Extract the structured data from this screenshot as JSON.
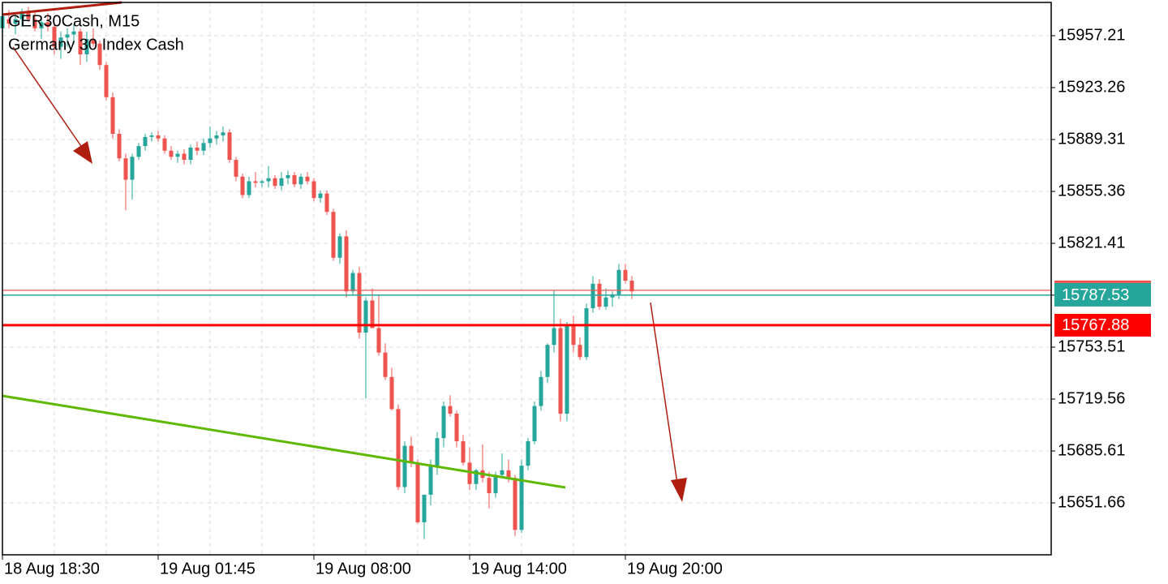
{
  "chart_data": {
    "type": "candlestick",
    "title": "GER30Cash, M15",
    "subtitle": "Germany 30 Index Cash",
    "x": [
      "18 Aug 18:30",
      null,
      null,
      null,
      null,
      null,
      null,
      null,
      null,
      null,
      null,
      null,
      null,
      null,
      null,
      null,
      null,
      null,
      null,
      null,
      null,
      null,
      null,
      null,
      "19 Aug 01:45",
      null,
      null,
      null,
      null,
      null,
      null,
      null,
      null,
      null,
      null,
      null,
      null,
      null,
      null,
      null,
      null,
      null,
      null,
      null,
      null,
      null,
      null,
      null,
      "19 Aug 08:00",
      null,
      null,
      null,
      null,
      null,
      null,
      null,
      null,
      null,
      null,
      null,
      null,
      null,
      null,
      null,
      null,
      null,
      null,
      null,
      null,
      null,
      null,
      null,
      "19 Aug 14:00",
      null,
      null,
      null,
      null,
      null,
      null,
      null,
      null,
      null,
      null,
      null,
      null,
      null,
      null,
      null,
      null,
      null,
      null,
      null,
      null,
      null,
      null,
      null,
      "19 Aug 20:00",
      null
    ],
    "open": [
      15962,
      15968,
      15965,
      15968,
      15972,
      15968,
      15962,
      15966,
      15963,
      15950,
      15956,
      15958,
      15960,
      15945,
      15955,
      15952,
      15938,
      15917,
      15893,
      15877,
      15863,
      15878,
      15885,
      15891,
      15892,
      15890,
      15882,
      15878,
      15880,
      15876,
      15884,
      15882,
      15887,
      15890,
      15892,
      15894,
      15876,
      15865,
      15853,
      15862,
      15861,
      15862,
      15864,
      15859,
      15864,
      15866,
      15860,
      15865,
      15862,
      15851,
      15854,
      15842,
      15812,
      15826,
      15790,
      15802,
      15763,
      15784,
      15766,
      15750,
      15734,
      15713,
      15662,
      15689,
      15678,
      15639,
      15657,
      15676,
      15694,
      15715,
      15710,
      15692,
      15678,
      15664,
      15673,
      15668,
      15658,
      15670,
      15673,
      15668,
      15634,
      15676,
      15692,
      15715,
      15734,
      15755,
      15766,
      15710,
      15768,
      15755,
      15747,
      15779,
      15795,
      15780,
      15786,
      15788,
      15804,
      15797
    ],
    "high": [
      15975,
      15974,
      15972,
      15975,
      15976,
      15973,
      15970,
      15972,
      15966,
      15960,
      15962,
      15965,
      15962,
      15960,
      15962,
      15954,
      15940,
      15920,
      15896,
      15880,
      15880,
      15887,
      15893,
      15894,
      15895,
      15892,
      15885,
      15882,
      15883,
      15886,
      15888,
      15890,
      15898,
      15895,
      15898,
      15896,
      15878,
      15867,
      15865,
      15868,
      15863,
      15872,
      15866,
      15868,
      15869,
      15868,
      15867,
      15868,
      15864,
      15856,
      15856,
      15844,
      15828,
      15830,
      15804,
      15806,
      15786,
      15792,
      15788,
      15756,
      15740,
      15716,
      15692,
      15695,
      15680,
      15656,
      15680,
      15698,
      15718,
      15722,
      15712,
      15696,
      15688,
      15674,
      15690,
      15672,
      15672,
      15684,
      15680,
      15670,
      15680,
      15694,
      15718,
      15738,
      15756,
      15791,
      15772,
      15770,
      15774,
      15760,
      15782,
      15800,
      15798,
      15792,
      15790,
      15808,
      15808,
      15800
    ],
    "low": [
      15958,
      15962,
      15958,
      15963,
      15966,
      15960,
      15955,
      15960,
      15945,
      15942,
      15950,
      15952,
      15938,
      15940,
      15950,
      15935,
      15915,
      15890,
      15875,
      15843,
      15850,
      15876,
      15882,
      15888,
      15888,
      15880,
      15876,
      15874,
      15873,
      15873,
      15879,
      15879,
      15884,
      15886,
      15888,
      15874,
      15862,
      15851,
      15851,
      15858,
      15858,
      15858,
      15857,
      15856,
      15860,
      15858,
      15857,
      15860,
      15849,
      15848,
      15840,
      15810,
      15808,
      15786,
      15788,
      15759,
      15720,
      15766,
      15748,
      15732,
      15712,
      15660,
      15658,
      15675,
      15638,
      15628,
      15650,
      15670,
      15688,
      15708,
      15688,
      15676,
      15660,
      15660,
      15665,
      15648,
      15655,
      15668,
      15665,
      15630,
      15632,
      15673,
      15690,
      15712,
      15730,
      15750,
      15705,
      15705,
      15750,
      15745,
      15745,
      15776,
      15778,
      15778,
      15780,
      15785,
      15795,
      15785
    ],
    "close": [
      15970,
      15965,
      15968,
      15972,
      15968,
      15962,
      15966,
      15963,
      15950,
      15956,
      15958,
      15960,
      15945,
      15955,
      15952,
      15938,
      15917,
      15893,
      15877,
      15863,
      15878,
      15885,
      15891,
      15892,
      15890,
      15882,
      15878,
      15880,
      15876,
      15884,
      15882,
      15887,
      15890,
      15892,
      15894,
      15876,
      15865,
      15853,
      15862,
      15861,
      15862,
      15864,
      15859,
      15864,
      15866,
      15860,
      15865,
      15862,
      15851,
      15854,
      15842,
      15812,
      15826,
      15790,
      15802,
      15763,
      15784,
      15766,
      15750,
      15734,
      15713,
      15662,
      15689,
      15678,
      15639,
      15657,
      15676,
      15694,
      15715,
      15710,
      15692,
      15678,
      15664,
      15673,
      15668,
      15658,
      15670,
      15673,
      15668,
      15634,
      15676,
      15692,
      15715,
      15734,
      15755,
      15766,
      15710,
      15768,
      15755,
      15747,
      15779,
      15795,
      15780,
      15786,
      15788,
      15804,
      15797,
      15790
    ],
    "up_color": "#26a69a",
    "down_color": "#ef5350",
    "ylim": [
      15617.71,
      15978.96
    ],
    "yticks": [
      15651.66,
      15685.61,
      15719.56,
      15753.51,
      15787.53,
      15821.41,
      15855.36,
      15889.31,
      15923.26,
      15957.21
    ],
    "current_price": 15787.53,
    "current_color": "#26a69a",
    "level": 15767.88,
    "level_color": "#ff0000",
    "grid": true
  }
}
